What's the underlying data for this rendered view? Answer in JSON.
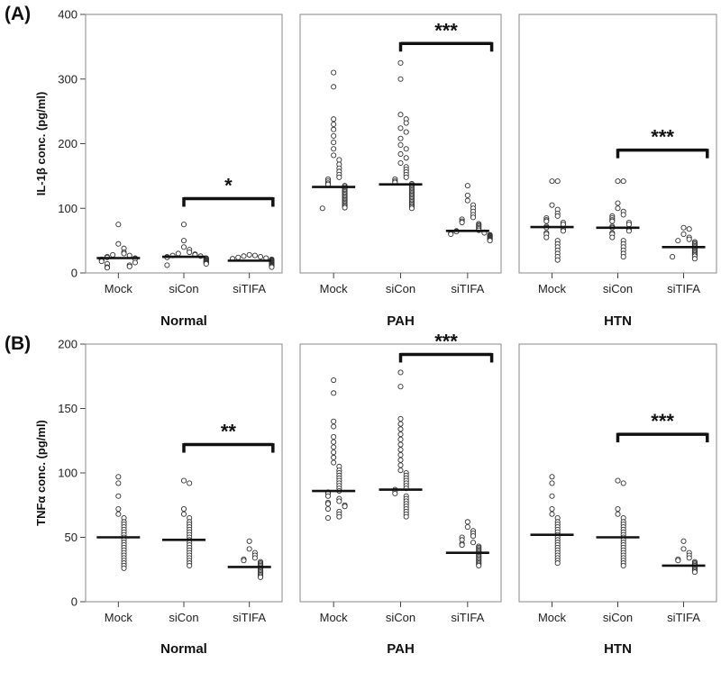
{
  "chart_data": [
    {
      "type": "scatter",
      "panel_label": "(A)",
      "ylabel": "IL-1β conc. (pg/ml)",
      "ylim": [
        0,
        400
      ],
      "yticks": [
        0,
        100,
        200,
        300,
        400
      ],
      "categories": [
        "Mock",
        "siCon",
        "siTIFA"
      ],
      "groups": [
        {
          "name": "Normal",
          "series": [
            {
              "name": "Mock",
              "median": 23,
              "values": [
                75,
                45,
                38,
                32,
                30,
                28,
                27,
                25,
                24,
                23,
                22,
                21,
                20,
                18,
                16,
                14,
                12,
                10,
                9,
                8
              ]
            },
            {
              "name": "siCon",
              "median": 25,
              "values": [
                75,
                50,
                40,
                36,
                32,
                30,
                29,
                28,
                27,
                26,
                25,
                24,
                23,
                22,
                21,
                20,
                19,
                18,
                17,
                16,
                15,
                14,
                12
              ]
            },
            {
              "name": "siTIFA",
              "median": 19,
              "values": [
                28,
                27,
                26,
                25,
                24,
                23,
                22,
                21,
                20,
                19,
                18,
                17,
                16,
                15,
                14,
                13,
                12,
                11,
                10,
                9
              ]
            }
          ],
          "significance": {
            "from": "siCon",
            "to": "siTIFA",
            "label": "*",
            "y": 115
          }
        },
        {
          "name": "PAH",
          "series": [
            {
              "name": "Mock",
              "median": 133,
              "values": [
                310,
                288,
                238,
                230,
                222,
                212,
                202,
                192,
                182,
                175,
                168,
                162,
                157,
                152,
                148,
                145,
                142,
                139,
                137,
                135,
                133,
                131,
                129,
                127,
                125,
                123,
                121,
                119,
                117,
                115,
                113,
                111,
                109,
                107,
                105,
                103,
                101,
                100
              ]
            },
            {
              "name": "siCon",
              "median": 137,
              "values": [
                325,
                300,
                245,
                238,
                232,
                224,
                218,
                208,
                198,
                192,
                184,
                178,
                170,
                164,
                160,
                156,
                152,
                148,
                145,
                142,
                140,
                138,
                136,
                134,
                132,
                130,
                128,
                126,
                124,
                122,
                120,
                118,
                116,
                114,
                112,
                110,
                108,
                106,
                104,
                102,
                100
              ]
            },
            {
              "name": "siTIFA",
              "median": 65,
              "values": [
                135,
                120,
                112,
                105,
                100,
                95,
                90,
                86,
                83,
                80,
                78,
                76,
                74,
                72,
                70,
                68,
                66,
                65,
                64,
                63,
                62,
                61,
                60,
                59,
                58,
                57,
                56,
                55,
                54,
                53,
                52,
                51,
                50
              ]
            }
          ],
          "significance": {
            "from": "siCon",
            "to": "siTIFA",
            "label": "***",
            "y": 355
          }
        },
        {
          "name": "HTN",
          "series": [
            {
              "name": "Mock",
              "median": 71,
              "values": [
                142,
                142,
                105,
                98,
                92,
                88,
                85,
                82,
                80,
                78,
                75,
                72,
                70,
                68,
                65,
                62,
                60,
                55,
                50,
                45,
                40,
                35,
                30,
                25,
                20
              ]
            },
            {
              "name": "siCon",
              "median": 70,
              "values": [
                142,
                142,
                108,
                100,
                95,
                90,
                88,
                85,
                82,
                80,
                78,
                75,
                72,
                70,
                68,
                65,
                62,
                60,
                55,
                50,
                45,
                40,
                35,
                30,
                25
              ]
            },
            {
              "name": "siTIFA",
              "median": 40,
              "values": [
                70,
                68,
                60,
                55,
                52,
                50,
                48,
                46,
                44,
                42,
                40,
                38,
                36,
                34,
                32,
                30,
                28,
                26,
                25,
                22
              ]
            }
          ],
          "significance": {
            "from": "siCon",
            "to": "siTIFA",
            "label": "***",
            "y": 190
          }
        }
      ]
    },
    {
      "type": "scatter",
      "panel_label": "(B)",
      "ylabel": "TNFα conc. (pg/ml)",
      "ylim": [
        0,
        200
      ],
      "yticks": [
        0,
        50,
        100,
        150,
        200
      ],
      "categories": [
        "Mock",
        "siCon",
        "siTIFA"
      ],
      "groups": [
        {
          "name": "Normal",
          "series": [
            {
              "name": "Mock",
              "median": 50,
              "values": [
                97,
                92,
                82,
                72,
                68,
                65,
                62,
                60,
                58,
                56,
                54,
                52,
                50,
                48,
                46,
                44,
                42,
                40,
                38,
                36,
                34,
                32,
                30,
                28,
                26
              ]
            },
            {
              "name": "siCon",
              "median": 48,
              "values": [
                94,
                92,
                72,
                68,
                65,
                62,
                60,
                58,
                56,
                54,
                52,
                50,
                48,
                46,
                44,
                42,
                40,
                38,
                36,
                34,
                32,
                30,
                28
              ]
            },
            {
              "name": "siTIFA",
              "median": 27,
              "values": [
                47,
                41,
                38,
                36,
                34,
                33,
                32,
                31,
                30,
                29,
                28,
                27,
                26,
                25,
                24,
                23,
                22,
                21,
                20,
                19
              ]
            }
          ],
          "significance": {
            "from": "siCon",
            "to": "siTIFA",
            "label": "**",
            "y": 122
          }
        },
        {
          "name": "PAH",
          "series": [
            {
              "name": "Mock",
              "median": 86,
              "values": [
                172,
                162,
                140,
                136,
                128,
                124,
                120,
                116,
                112,
                108,
                105,
                102,
                100,
                98,
                96,
                94,
                92,
                90,
                88,
                86,
                85,
                84,
                82,
                80,
                78,
                77,
                76,
                75,
                74,
                72,
                70,
                68,
                66,
                65
              ]
            },
            {
              "name": "siCon",
              "median": 87,
              "values": [
                178,
                167,
                142,
                138,
                134,
                130,
                126,
                122,
                118,
                114,
                110,
                106,
                102,
                100,
                98,
                96,
                94,
                92,
                90,
                88,
                87,
                86,
                84,
                82,
                80,
                78,
                76,
                74,
                72,
                70,
                68,
                66
              ]
            },
            {
              "name": "siTIFA",
              "median": 38,
              "values": [
                62,
                58,
                55,
                53,
                51,
                50,
                48,
                46,
                45,
                44,
                43,
                42,
                41,
                40,
                39,
                38,
                37,
                36,
                35,
                34,
                33,
                32,
                31,
                30,
                29,
                28
              ]
            }
          ],
          "significance": {
            "from": "siCon",
            "to": "siTIFA",
            "label": "***",
            "y": 192
          }
        },
        {
          "name": "HTN",
          "series": [
            {
              "name": "Mock",
              "median": 52,
              "values": [
                97,
                92,
                82,
                72,
                68,
                65,
                62,
                60,
                58,
                56,
                54,
                52,
                50,
                48,
                46,
                44,
                42,
                40,
                38,
                36,
                34,
                32,
                30
              ]
            },
            {
              "name": "siCon",
              "median": 50,
              "values": [
                94,
                92,
                72,
                68,
                65,
                62,
                60,
                58,
                56,
                54,
                52,
                50,
                48,
                46,
                44,
                42,
                40,
                38,
                36,
                34,
                32,
                30,
                28
              ]
            },
            {
              "name": "siTIFA",
              "median": 28,
              "values": [
                47,
                41,
                38,
                36,
                34,
                33,
                32,
                31,
                30,
                29,
                28,
                27,
                26,
                25,
                24,
                23
              ]
            }
          ],
          "significance": {
            "from": "siCon",
            "to": "siTIFA",
            "label": "***",
            "y": 130
          }
        }
      ]
    }
  ]
}
